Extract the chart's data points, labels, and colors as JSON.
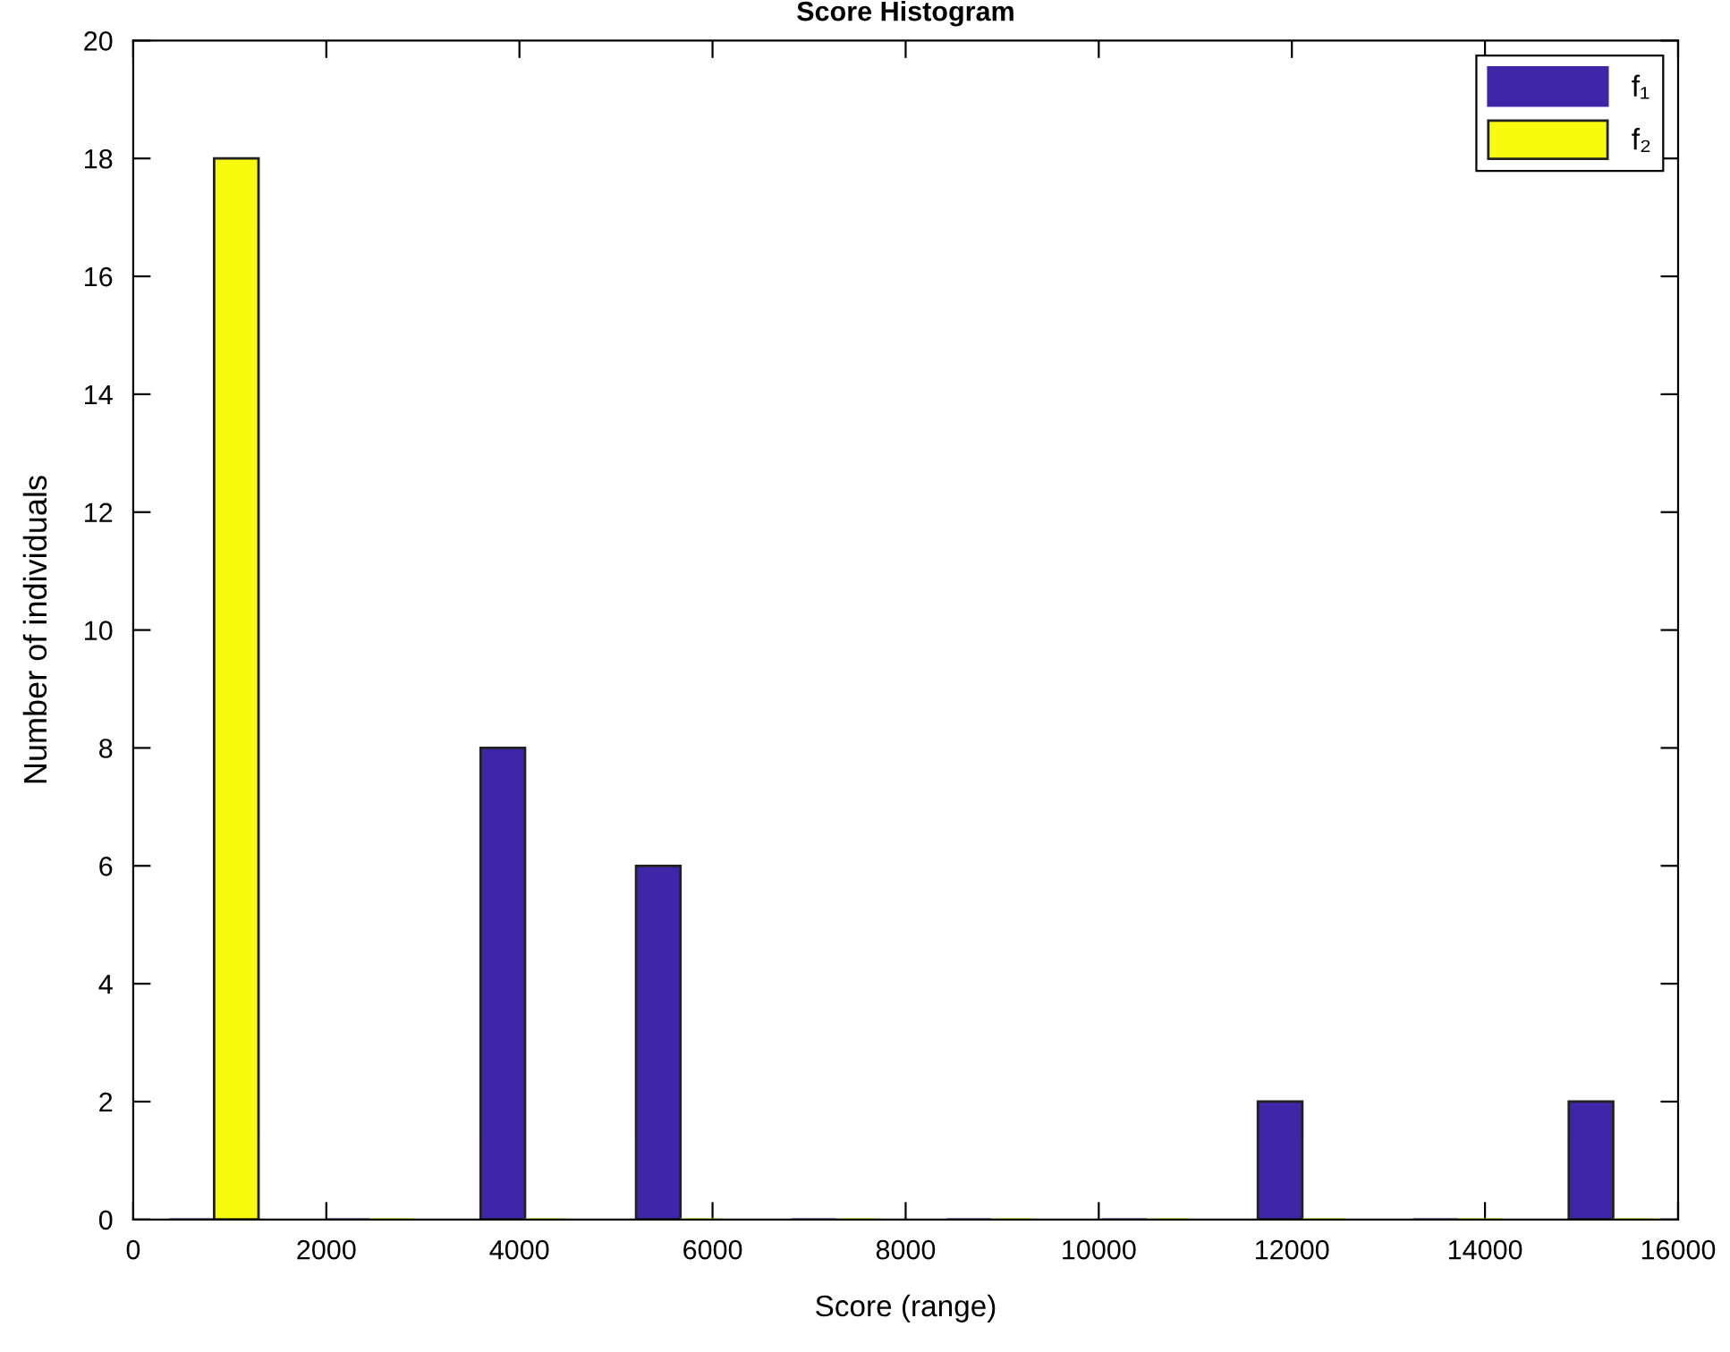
{
  "chart_data": {
    "type": "bar",
    "title": "Score Histogram",
    "xlabel": "Score (range)",
    "ylabel": "Number of individuals",
    "x": [
      838,
      2448,
      4058,
      5668,
      7278,
      8888,
      10498,
      12108,
      13718,
      15328
    ],
    "series": [
      {
        "name": "f₁",
        "color": "#3e26a8",
        "values": [
          0,
          0,
          8,
          6,
          0,
          0,
          0,
          2,
          0,
          2
        ]
      },
      {
        "name": "f₂",
        "color": "#f9fb0e",
        "values": [
          18,
          0,
          0,
          0,
          0,
          0,
          0,
          0,
          0,
          0
        ]
      }
    ],
    "xlim": [
      0,
      16000
    ],
    "xticks": [
      0,
      2000,
      4000,
      6000,
      8000,
      10000,
      12000,
      14000,
      16000
    ],
    "ylim": [
      0,
      20
    ],
    "yticks": [
      0,
      2,
      4,
      6,
      8,
      10,
      12,
      14,
      16,
      18,
      20
    ],
    "grid": false,
    "legend": "top right"
  }
}
